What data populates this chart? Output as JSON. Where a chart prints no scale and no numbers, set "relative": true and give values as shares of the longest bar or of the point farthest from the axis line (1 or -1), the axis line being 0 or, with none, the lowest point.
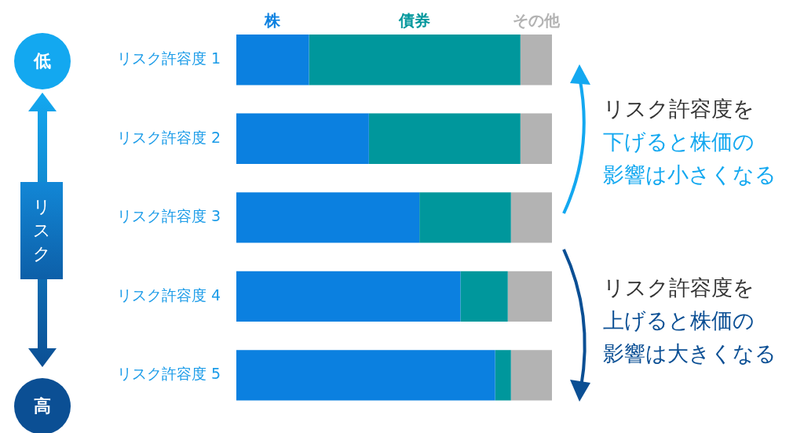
{
  "chart_data": {
    "type": "bar",
    "orientation": "horizontal",
    "stacked": true,
    "relative": true,
    "categories": [
      "リスク許容度 1",
      "リスク許容度 2",
      "リスク許容度 3",
      "リスク許容度 4",
      "リスク許容度 5"
    ],
    "series": [
      {
        "name": "株",
        "color": "#0b80e0",
        "values": [
          0.23,
          0.42,
          0.58,
          0.71,
          0.82
        ]
      },
      {
        "name": "債券",
        "color": "#00979c",
        "values": [
          0.67,
          0.48,
          0.29,
          0.15,
          0.05
        ]
      },
      {
        "name": "その他",
        "color": "#b3b3b3",
        "values": [
          0.1,
          0.1,
          0.13,
          0.14,
          0.13
        ]
      }
    ],
    "annotations": [
      "低",
      "リスク",
      "高",
      "リスク許容度を",
      "下げると株価の",
      "影響は小さくなる",
      "リスク許容度を",
      "上げると株価の",
      "影響は大きくなる"
    ]
  }
}
